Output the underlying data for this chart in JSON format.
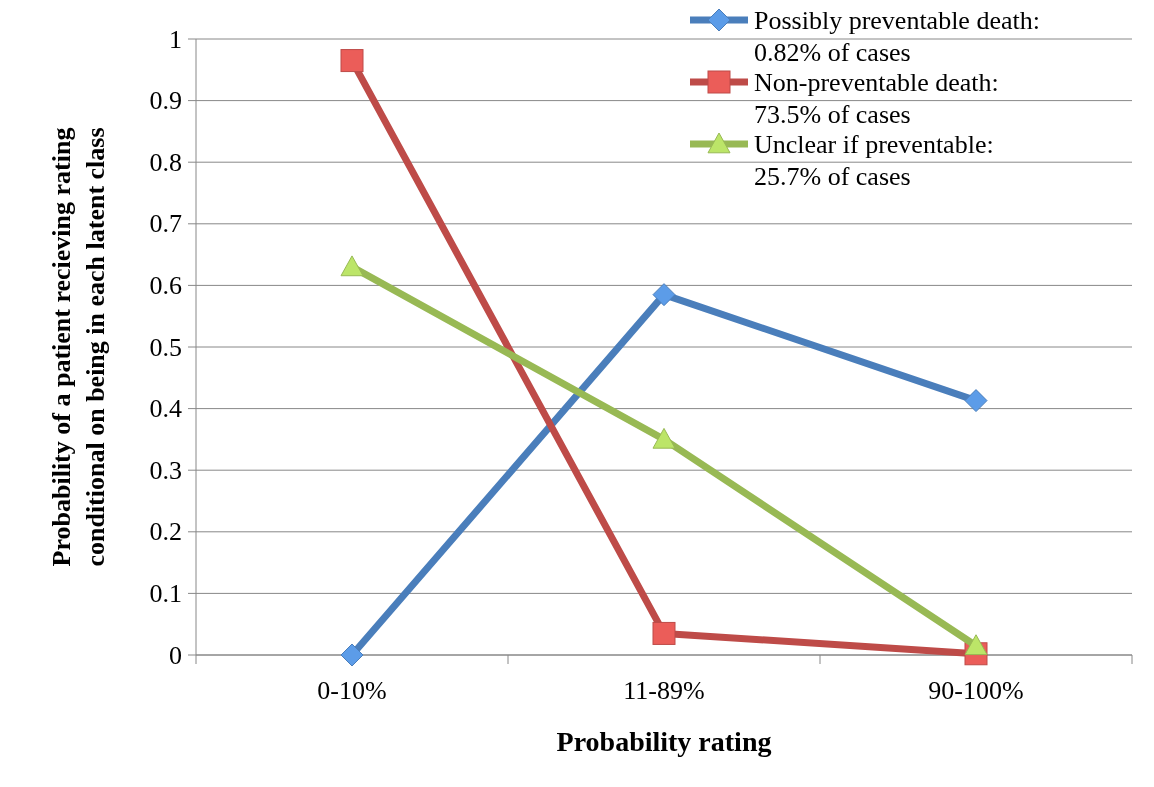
{
  "chart_data": {
    "type": "line",
    "xlabel": "Probability rating",
    "ylabel": "Probability of a patient recieving rating conditional on being in each latent  class",
    "categories": [
      "0-10%",
      "11-89%",
      "90-100%"
    ],
    "series": [
      {
        "name": "Possibly preventable death: 0.82% of cases",
        "color": "#4a7ebb",
        "marker": "diamond",
        "values": [
          0,
          0.585,
          0.413
        ]
      },
      {
        "name": "Non-preventable death: 73.5% of cases",
        "color": "#be4b48",
        "marker": "square",
        "values": [
          0.965,
          0.035,
          0.002
        ]
      },
      {
        "name": "Unclear if preventable: 25.7% of cases",
        "color": "#98b954",
        "marker": "triangle",
        "values": [
          0.63,
          0.35,
          0.015
        ]
      }
    ],
    "ylim": [
      0,
      1
    ],
    "yticks": [
      0,
      0.1,
      0.2,
      0.3,
      0.4,
      0.5,
      0.6,
      0.7,
      0.8,
      0.9,
      1
    ],
    "grid": "y",
    "legend": "top right",
    "line_style": "solid"
  }
}
